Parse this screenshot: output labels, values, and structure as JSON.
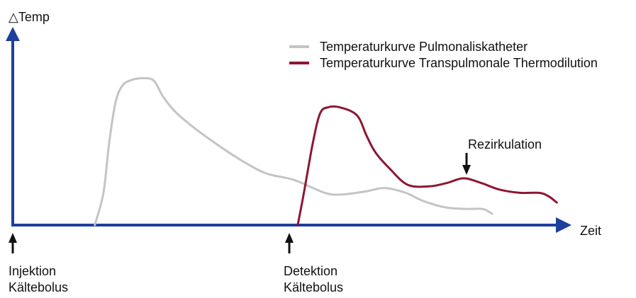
{
  "chart_data": {
    "type": "line",
    "title": "",
    "ylabel": "△Temp",
    "xlabel": "Zeit",
    "xlim": [
      0,
      100
    ],
    "ylim": [
      0,
      100
    ],
    "grid": false,
    "legend_position": "top-right",
    "colors": {
      "axis": "#1f3f9e",
      "series1": "#c4c4c4",
      "series2": "#8c1732",
      "marker": "#111111"
    },
    "series": [
      {
        "name": "Temperaturkurve Pulmonaliskatheter",
        "color": "#c4c4c4",
        "points": [
          [
            13.3,
            0
          ],
          [
            14.7,
            20
          ],
          [
            15.6,
            50
          ],
          [
            16.6,
            75
          ],
          [
            17.7,
            86
          ],
          [
            19.3,
            90
          ],
          [
            21.6,
            91
          ],
          [
            23.0,
            89
          ],
          [
            24.3,
            80
          ],
          [
            26.4,
            70
          ],
          [
            29.5,
            60
          ],
          [
            33.1,
            50
          ],
          [
            37.1,
            40
          ],
          [
            41.1,
            32
          ],
          [
            45.6,
            28
          ],
          [
            50.6,
            20
          ],
          [
            53.5,
            19
          ],
          [
            57.4,
            21
          ],
          [
            60.3,
            23
          ],
          [
            63.7,
            20
          ],
          [
            66.5,
            15
          ],
          [
            70.1,
            11
          ],
          [
            73.5,
            10
          ],
          [
            76.2,
            10
          ],
          [
            77.7,
            7
          ]
        ]
      },
      {
        "name": "Temperaturkurve Transpulmonale Thermodilution",
        "color": "#8c1732",
        "points": [
          [
            46.2,
            0
          ],
          [
            47.2,
            20
          ],
          [
            48.6,
            50
          ],
          [
            49.8,
            69
          ],
          [
            51.1,
            73
          ],
          [
            53.0,
            73
          ],
          [
            55.8,
            68
          ],
          [
            57.4,
            55
          ],
          [
            58.8,
            45
          ],
          [
            61.1,
            35
          ],
          [
            64.0,
            25
          ],
          [
            67.5,
            24
          ],
          [
            70.3,
            26
          ],
          [
            73.1,
            29
          ],
          [
            76.0,
            26
          ],
          [
            78.9,
            22
          ],
          [
            82.2,
            20
          ],
          [
            85.3,
            20
          ],
          [
            86.8,
            18
          ],
          [
            88.2,
            14
          ]
        ]
      }
    ],
    "annotations": [
      {
        "id": "rezirkulation",
        "text": "Rezirkulation",
        "x": 73.1,
        "y": 29
      },
      {
        "id": "injektion",
        "lines": [
          "Injektion",
          "Kältebolus"
        ],
        "x": 0
      },
      {
        "id": "detektion",
        "lines": [
          "Detektion",
          "Kältebolus"
        ],
        "x": 46.2
      }
    ]
  }
}
